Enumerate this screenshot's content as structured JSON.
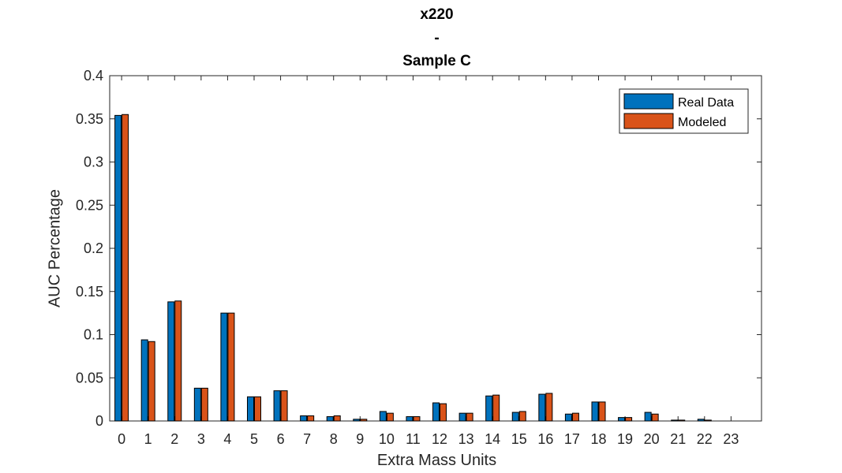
{
  "chart_data": {
    "type": "bar",
    "title_lines": [
      "x220",
      "-",
      "Sample C"
    ],
    "xlabel": "Extra Mass Units",
    "ylabel": "AUC Percentage",
    "categories": [
      "0",
      "1",
      "2",
      "3",
      "4",
      "5",
      "6",
      "7",
      "8",
      "9",
      "10",
      "11",
      "12",
      "13",
      "14",
      "15",
      "16",
      "17",
      "18",
      "19",
      "20",
      "21",
      "22",
      "23"
    ],
    "ylim": [
      0,
      0.4
    ],
    "yticks": [
      "0",
      "0.05",
      "0.1",
      "0.15",
      "0.2",
      "0.25",
      "0.3",
      "0.35",
      "0.4"
    ],
    "grid": false,
    "legend_position": "top-right",
    "series": [
      {
        "name": "Real Data",
        "color": "#0072BD",
        "values": [
          0.354,
          0.094,
          0.138,
          0.038,
          0.125,
          0.028,
          0.035,
          0.006,
          0.005,
          0.002,
          0.011,
          0.005,
          0.021,
          0.009,
          0.029,
          0.01,
          0.031,
          0.008,
          0.022,
          0.004,
          0.01,
          0.001,
          0.002,
          0.0
        ]
      },
      {
        "name": "Modeled",
        "color": "#D95319",
        "values": [
          0.355,
          0.092,
          0.139,
          0.038,
          0.125,
          0.028,
          0.035,
          0.006,
          0.006,
          0.002,
          0.009,
          0.005,
          0.02,
          0.009,
          0.03,
          0.011,
          0.032,
          0.009,
          0.022,
          0.004,
          0.008,
          0.001,
          0.001,
          0.0
        ]
      }
    ]
  }
}
